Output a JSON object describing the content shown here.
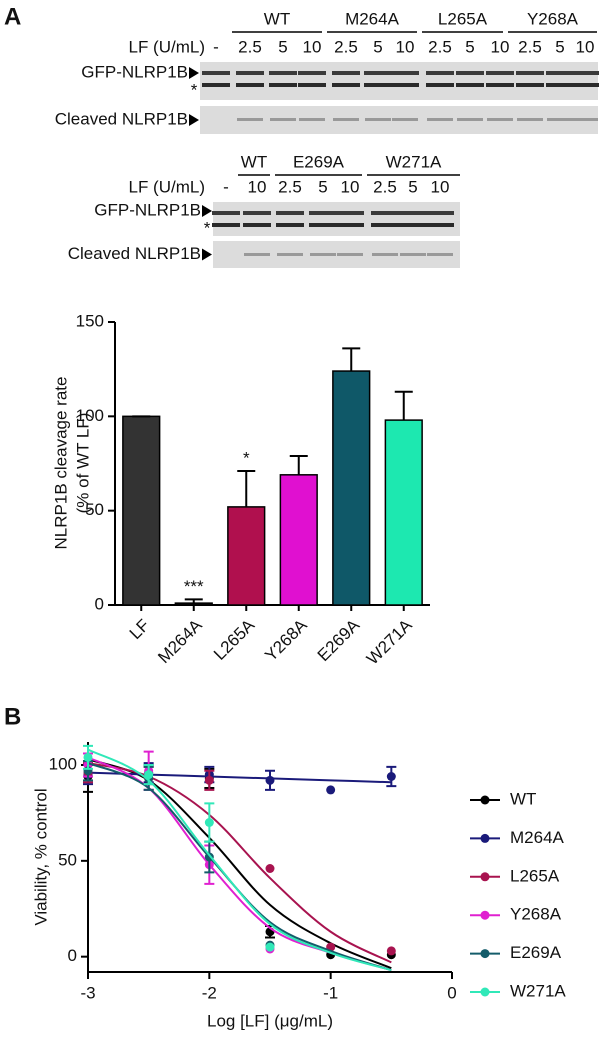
{
  "panel_labels": [
    "A",
    "B"
  ],
  "blots": [
    {
      "groups": [
        "WT",
        "M264A",
        "L265A",
        "Y268A"
      ],
      "lf_label": "LF (U/mL)",
      "doses": [
        "-",
        "2.5",
        "5",
        "10",
        "2.5",
        "5",
        "10",
        "2.5",
        "5",
        "10",
        "2.5",
        "5",
        "10"
      ],
      "rows": [
        "GFP-NLRP1B",
        "Cleaved NLRP1B"
      ],
      "marker": "*"
    },
    {
      "groups": [
        "WT",
        "E269A",
        "W271A"
      ],
      "lf_label": "LF (U/mL)",
      "doses": [
        "-",
        "10",
        "2.5",
        "5",
        "10",
        "2.5",
        "5",
        "10"
      ],
      "rows": [
        "GFP-NLRP1B",
        "Cleaved NLRP1B"
      ],
      "marker": "*"
    }
  ],
  "chart_data": [
    {
      "type": "bar",
      "ylabel": [
        "NLRP1B cleavage rate",
        "(% of WT LF)"
      ],
      "categories": [
        "LF",
        "M264A",
        "L265A",
        "Y268A",
        "E269A",
        "W271A"
      ],
      "values": [
        100,
        1,
        52,
        69,
        124,
        98
      ],
      "errors": [
        0,
        2,
        19,
        10,
        12,
        15
      ],
      "value_annotations": [
        null,
        "***",
        "*",
        null,
        null,
        null
      ],
      "colors": [
        "#333333",
        "#111111",
        "#b0104e",
        "#e010d0",
        "#0f5868",
        "#1de8b0"
      ],
      "ylim": [
        0,
        150
      ],
      "yticks": [
        0,
        50,
        100,
        150
      ]
    },
    {
      "type": "line",
      "xlabel": "Log [LF] (μg/mL)",
      "ylabel": "Viability, % control",
      "x": [
        -3,
        -2.5,
        -2,
        -1.5,
        -1,
        -0.5
      ],
      "series": [
        {
          "name": "WT",
          "color": "#000000",
          "values": [
            94,
            95,
            93,
            13,
            1,
            1
          ],
          "errors": [
            8,
            5,
            5,
            3,
            0,
            0
          ],
          "fit": [
            103,
            92,
            62,
            27,
            7,
            -6
          ]
        },
        {
          "name": "M264A",
          "color": "#1a1a7a",
          "values": [
            95,
            96,
            95,
            92,
            87,
            94
          ],
          "errors": [
            5,
            5,
            4,
            5,
            0,
            5
          ],
          "fit": [
            96,
            95,
            94,
            93,
            92,
            91
          ]
        },
        {
          "name": "L265A",
          "color": "#a8134f",
          "values": [
            96,
            93,
            92,
            46,
            5,
            3
          ],
          "errors": [
            5,
            6,
            5,
            0,
            0,
            0
          ],
          "fit": [
            101,
            94,
            74,
            41,
            13,
            -3
          ]
        },
        {
          "name": "Y268A",
          "color": "#e020d0",
          "values": [
            100,
            97,
            48,
            4,
            null,
            null
          ],
          "errors": [
            6,
            10,
            10,
            0,
            null,
            null
          ],
          "fit": [
            104,
            88,
            48,
            15,
            2,
            -7
          ]
        },
        {
          "name": "E269A",
          "color": "#145c6a",
          "values": [
            97,
            93,
            52,
            6,
            null,
            null
          ],
          "errors": [
            5,
            6,
            8,
            0,
            null,
            null
          ],
          "fit": [
            101,
            88,
            52,
            18,
            3,
            -7
          ]
        },
        {
          "name": "W271A",
          "color": "#30e8b8",
          "values": [
            104,
            95,
            70,
            5,
            null,
            null
          ],
          "errors": [
            6,
            5,
            10,
            0,
            null,
            null
          ],
          "fit": [
            108,
            92,
            53,
            17,
            2,
            -7
          ]
        }
      ],
      "xlim": [
        -3,
        0
      ],
      "xticks": [
        -3,
        -2,
        -1,
        0
      ],
      "ylim": [
        -8,
        112
      ],
      "yticks": [
        0,
        50,
        100
      ]
    }
  ]
}
